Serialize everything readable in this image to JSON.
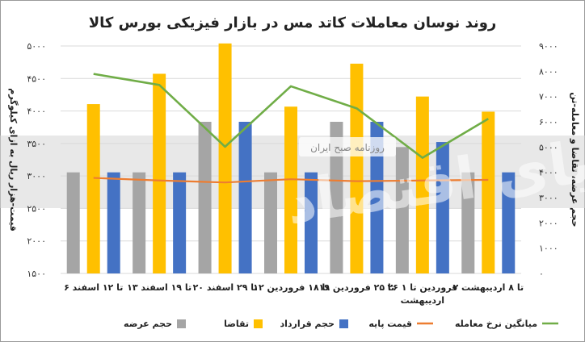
{
  "chart_data": {
    "type": "bar",
    "title": "روند نوسان معاملات کاتد مس در بازار فیزیکی بورس کالا",
    "categories": [
      [
        "۶ تا ۱۲ اسفند"
      ],
      [
        "۱۳ تا ۱۹ اسفند"
      ],
      [
        "۲۰ تا ۲۹ اسفند"
      ],
      [
        "۱۲ تا ۱۸ فروردین"
      ],
      [
        "۱۹ تا ۲۵ فروردین"
      ],
      [
        "۲۶ فروردین تا ۱",
        "اردیبهشت"
      ],
      [
        "۲ تا ۸ اردیبهشت"
      ]
    ],
    "series": [
      {
        "name": "حجم عرضه",
        "type": "bar",
        "axis": "right",
        "color": "#a5a5a5",
        "values": [
          4000,
          4000,
          6000,
          4000,
          6000,
          5000,
          4000
        ]
      },
      {
        "name": "تقاضا",
        "type": "bar",
        "axis": "right",
        "color": "#ffc000",
        "values": [
          6700,
          7900,
          9100,
          6600,
          8300,
          7000,
          6400
        ]
      },
      {
        "name": "حجم قرارداد",
        "type": "bar",
        "axis": "right",
        "color": "#4472c4",
        "values": [
          4000,
          4000,
          6000,
          4000,
          6000,
          5200,
          4000
        ]
      },
      {
        "name": "قیمت پایه",
        "type": "line",
        "axis": "left",
        "color": "#ed7d31",
        "values": [
          2970,
          2930,
          2900,
          2950,
          2920,
          2930,
          2940
        ]
      },
      {
        "name": "میانگین نرخ معامله",
        "type": "line",
        "axis": "left",
        "color": "#70ad47",
        "values": [
          4570,
          4400,
          3450,
          4380,
          4040,
          3280,
          3880
        ]
      }
    ],
    "y_left": {
      "label": "قیمت-هزار ریال به ازای کیلوگرم",
      "min": 1500,
      "max": 5000,
      "ticks": [
        1500,
        2000,
        2500,
        3000,
        3500,
        4000,
        4500,
        5000
      ],
      "tick_labels": [
        "۱۵۰۰",
        "۲۰۰۰",
        "۲۵۰۰",
        "۳۰۰۰",
        "۳۵۰۰",
        "۴۰۰۰",
        "۴۵۰۰",
        "۵۰۰۰"
      ]
    },
    "y_right": {
      "label": "حجم عرضه، تقاضا و معامله-تن",
      "min": 0,
      "max": 9000,
      "ticks": [
        0,
        1000,
        2000,
        3000,
        4000,
        5000,
        6000,
        7000,
        8000,
        9000
      ],
      "tick_labels": [
        "۰",
        "۱۰۰۰",
        "۲۰۰۰",
        "۳۰۰۰",
        "۴۰۰۰",
        "۵۰۰۰",
        "۶۰۰۰",
        "۷۰۰۰",
        "۸۰۰۰",
        "۹۰۰۰"
      ]
    },
    "grid": true,
    "legend_position": "bottom",
    "watermark": {
      "text": "روزنامه صبح ایران",
      "logo_text": "دنیای اقتصاد"
    }
  }
}
